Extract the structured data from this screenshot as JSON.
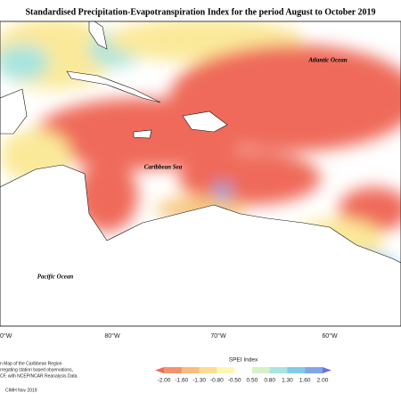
{
  "header": {
    "title": "Standardised Precipitation-Evapotranspiration Index for the period August to October 2019"
  },
  "map": {
    "labels": [
      "Atlantic Ocean",
      "Caribbean Sea",
      "Pacific Ocean"
    ],
    "longitudes": [
      "0°W",
      "80°W",
      "70°W",
      "60°W"
    ]
  },
  "legend": {
    "title": "SPEI Index",
    "ticks": [
      "-2.00",
      "-1.60",
      "-1.30",
      "-0.80",
      "-0.50",
      "0.50",
      "0.80",
      "1.30",
      "1.60",
      "2.00"
    ]
  },
  "notes": [
    "n Map of the Caribbean Region",
    "rregating station based observations,",
    "CF, with NCEP/NCAR Reanalysis Data.",
    "CIMH Nov 2019"
  ]
}
